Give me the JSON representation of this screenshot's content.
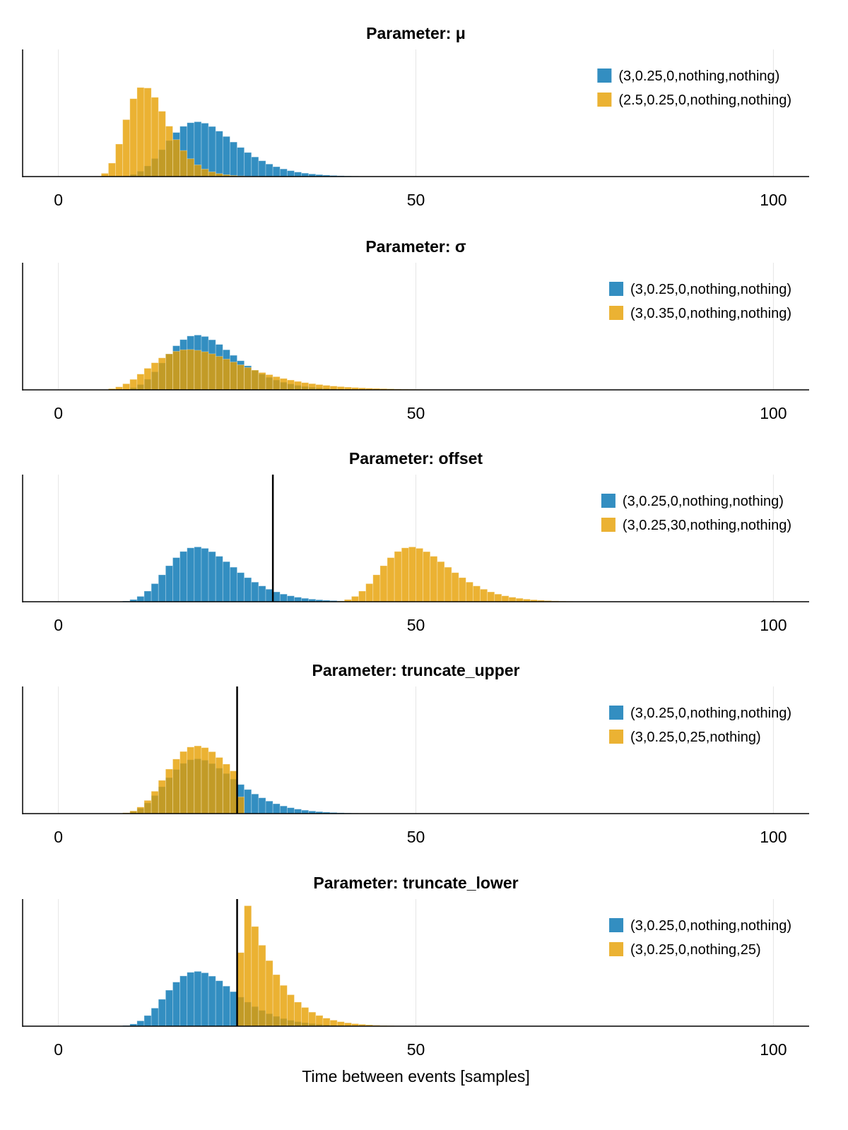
{
  "colors": {
    "series1": "#0072B2",
    "series2": "#E69F00",
    "series_opacity": 0.8,
    "grid": "#e6e6e6",
    "vline": "#000000"
  },
  "chart_data": [
    {
      "type": "bar",
      "title": "Parameter: μ",
      "xlim": [
        -5,
        105
      ],
      "ylim": [
        0,
        0.19
      ],
      "xticks": [
        0,
        50,
        100
      ],
      "grid": "vertical",
      "legend": "top-right",
      "bin_width": 1,
      "vlines": [],
      "series": [
        {
          "name": "(3,0.25,0,nothing,nothing)",
          "color": "#0072B2",
          "bin_start": 8,
          "values": [
            0.00023,
            0.00102,
            0.00326,
            0.00798,
            0.0159,
            0.027,
            0.0402,
            0.0538,
            0.0659,
            0.0751,
            0.0805,
            0.0819,
            0.0798,
            0.0748,
            0.0679,
            0.0599,
            0.0516,
            0.0435,
            0.036,
            0.0293,
            0.0236,
            0.0187,
            0.0147,
            0.0114,
            0.0088,
            0.00673,
            0.00511,
            0.00387,
            0.00291,
            0.00218,
            0.00163,
            0.00121,
            0.00089,
            0.00066,
            0.00048,
            0.00035,
            0.00026,
            0.00019,
            0.00014,
            0.0001,
            7e-05,
            5e-05,
            4e-05
          ]
        },
        {
          "name": "(2.5,0.25,0,nothing,nothing)",
          "color": "#E69F00",
          "bin_start": 4,
          "values": [
            2e-05,
            0.00056,
            0.0048,
            0.0201,
            0.0486,
            0.0851,
            0.1164,
            0.1331,
            0.1324,
            0.1184,
            0.0976,
            0.0753,
            0.0552,
            0.0389,
            0.0267,
            0.0175,
            0.0112,
            0.0071,
            0.0045,
            0.0028,
            0.0017,
            0.001,
            0.0006,
            0.0004,
            0.0002,
            0.0001,
            0.0001
          ]
        }
      ]
    },
    {
      "type": "bar",
      "title": "Parameter: σ",
      "xlim": [
        -5,
        105
      ],
      "ylim": [
        0,
        0.19
      ],
      "xticks": [
        0,
        50,
        100
      ],
      "grid": "vertical",
      "legend": "top-right",
      "bin_width": 1,
      "vlines": [],
      "series": [
        {
          "name": "(3,0.25,0,nothing,nothing)",
          "color": "#0072B2",
          "bin_start": 8,
          "values": [
            0.00023,
            0.00102,
            0.00326,
            0.00798,
            0.0159,
            0.027,
            0.0402,
            0.0538,
            0.0659,
            0.0751,
            0.0805,
            0.0819,
            0.0798,
            0.0748,
            0.0679,
            0.0599,
            0.0516,
            0.0435,
            0.036,
            0.0293,
            0.0236,
            0.0187,
            0.0147,
            0.0114,
            0.0088,
            0.00673,
            0.00511,
            0.00387,
            0.00291,
            0.00218,
            0.00163,
            0.00121,
            0.00089,
            0.00066,
            0.00048,
            0.00035,
            0.00026,
            0.00019,
            0.00014,
            0.0001,
            7e-05,
            5e-05,
            4e-05
          ]
        },
        {
          "name": "(3,0.35,0,nothing,nothing)",
          "color": "#E69F00",
          "bin_start": 6,
          "values": [
            0.00049,
            0.00175,
            0.00449,
            0.00912,
            0.01566,
            0.0236,
            0.0322,
            0.0405,
            0.0478,
            0.0537,
            0.0577,
            0.0599,
            0.0603,
            0.0592,
            0.057,
            0.0539,
            0.0501,
            0.046,
            0.0417,
            0.0375,
            0.0334,
            0.0295,
            0.0259,
            0.0227,
            0.0197,
            0.017,
            0.0147,
            0.0126,
            0.0108,
            0.00925,
            0.00789,
            0.00672,
            0.00571,
            0.00484,
            0.00411,
            0.0035,
            0.00295,
            0.0025,
            0.0021,
            0.00178,
            0.0015,
            0.0012,
            0.001,
            0.0009,
            0.00076,
            0.00065,
            0.00055,
            0.00046,
            0.00039,
            0.00033,
            0.00028,
            0.00023,
            0.00019,
            0.00016,
            0.00014,
            0.00012,
            0.0001,
            8e-05,
            7e-05,
            6e-05
          ]
        }
      ]
    },
    {
      "type": "bar",
      "title": "Parameter: offset",
      "xlim": [
        -5,
        105
      ],
      "ylim": [
        0,
        0.19
      ],
      "xticks": [
        0,
        50,
        100
      ],
      "grid": "vertical",
      "legend": "top-right",
      "bin_width": 1,
      "vlines": [
        30
      ],
      "series": [
        {
          "name": "(3,0.25,0,nothing,nothing)",
          "color": "#0072B2",
          "bin_start": 8,
          "values": [
            0.00023,
            0.00102,
            0.00326,
            0.00798,
            0.0159,
            0.027,
            0.0402,
            0.0538,
            0.0659,
            0.0751,
            0.0805,
            0.0819,
            0.0798,
            0.0748,
            0.0679,
            0.0599,
            0.0516,
            0.0435,
            0.036,
            0.0293,
            0.0236,
            0.0187,
            0.0147,
            0.0114,
            0.0088,
            0.00673,
            0.00511,
            0.00387,
            0.00291,
            0.00218,
            0.00163,
            0.00121,
            0.00089,
            0.00066,
            0.00048,
            0.00035,
            0.00026,
            0.00019,
            0.00014,
            0.0001,
            7e-05,
            5e-05,
            4e-05
          ]
        },
        {
          "name": "(3,0.25,30,nothing,nothing)",
          "color": "#E69F00",
          "bin_start": 38,
          "values": [
            0.00023,
            0.00102,
            0.00326,
            0.00798,
            0.0159,
            0.027,
            0.0402,
            0.0538,
            0.0659,
            0.0751,
            0.0805,
            0.0819,
            0.0798,
            0.0748,
            0.0679,
            0.0599,
            0.0516,
            0.0435,
            0.036,
            0.0293,
            0.0236,
            0.0187,
            0.0147,
            0.0114,
            0.0088,
            0.00673,
            0.00511,
            0.00387,
            0.00291,
            0.00218,
            0.00163,
            0.00121,
            0.00089,
            0.00066,
            0.00048,
            0.00035,
            0.00026,
            0.00019,
            0.00014,
            0.0001,
            7e-05,
            5e-05,
            4e-05
          ]
        }
      ]
    },
    {
      "type": "bar",
      "title": "Parameter: truncate_upper",
      "xlim": [
        -5,
        105
      ],
      "ylim": [
        0,
        0.19
      ],
      "xticks": [
        0,
        50,
        100
      ],
      "grid": "vertical",
      "legend": "top-right",
      "bin_width": 1,
      "vlines": [
        25
      ],
      "series": [
        {
          "name": "(3,0.25,0,nothing,nothing)",
          "color": "#0072B2",
          "bin_start": 8,
          "values": [
            0.00023,
            0.00102,
            0.00326,
            0.00798,
            0.0159,
            0.027,
            0.0402,
            0.0538,
            0.0659,
            0.0751,
            0.0805,
            0.0819,
            0.0798,
            0.0748,
            0.0679,
            0.0599,
            0.0516,
            0.0435,
            0.036,
            0.0293,
            0.0236,
            0.0187,
            0.0147,
            0.0114,
            0.0088,
            0.00673,
            0.00511,
            0.00387,
            0.00291,
            0.00218,
            0.00163,
            0.00121,
            0.00089,
            0.00066,
            0.00048,
            0.00035,
            0.00026,
            0.00019,
            0.00014,
            0.0001,
            7e-05,
            5e-05,
            4e-05
          ]
        },
        {
          "name": "(3,0.25,0,25,nothing)",
          "color": "#E69F00",
          "bin_start": 8,
          "values": [
            0.00028,
            0.00126,
            0.00403,
            0.00986,
            0.0197,
            0.0334,
            0.0497,
            0.0665,
            0.0815,
            0.0928,
            0.0995,
            0.1012,
            0.0986,
            0.0925,
            0.0839,
            0.074,
            0.0638,
            0.025
          ]
        }
      ]
    },
    {
      "type": "bar",
      "title": "Parameter: truncate_lower",
      "xlabel": "Time between events [samples]",
      "xlim": [
        -5,
        105
      ],
      "ylim": [
        0,
        0.19
      ],
      "xticks": [
        0,
        50,
        100
      ],
      "grid": "vertical",
      "legend": "top-right",
      "bin_width": 1,
      "vlines": [
        25
      ],
      "series": [
        {
          "name": "(3,0.25,0,nothing,nothing)",
          "color": "#0072B2",
          "bin_start": 8,
          "values": [
            0.00023,
            0.00102,
            0.00326,
            0.00798,
            0.0159,
            0.027,
            0.0402,
            0.0538,
            0.0659,
            0.0751,
            0.0805,
            0.0819,
            0.0798,
            0.0748,
            0.0679,
            0.0599,
            0.0516,
            0.0435,
            0.036,
            0.0293,
            0.0236,
            0.0187,
            0.0147,
            0.0114,
            0.0088,
            0.00673,
            0.00511,
            0.00387,
            0.00291,
            0.00218,
            0.00163,
            0.00121,
            0.00089,
            0.00066,
            0.00048,
            0.00035,
            0.00026,
            0.00019,
            0.00014,
            0.0001,
            7e-05,
            5e-05,
            4e-05
          ]
        },
        {
          "name": "(3,0.25,0,nothing,25)",
          "color": "#E69F00",
          "bin_start": 25,
          "values": [
            0.11,
            0.18,
            0.149,
            0.121,
            0.098,
            0.077,
            0.061,
            0.047,
            0.036,
            0.028,
            0.021,
            0.016,
            0.012,
            0.009,
            0.0067,
            0.005,
            0.0037,
            0.0028,
            0.002,
            0.0014,
            0.001,
            0.0008,
            0.0006,
            0.0004,
            0.0002,
            0.0002
          ]
        }
      ]
    }
  ]
}
